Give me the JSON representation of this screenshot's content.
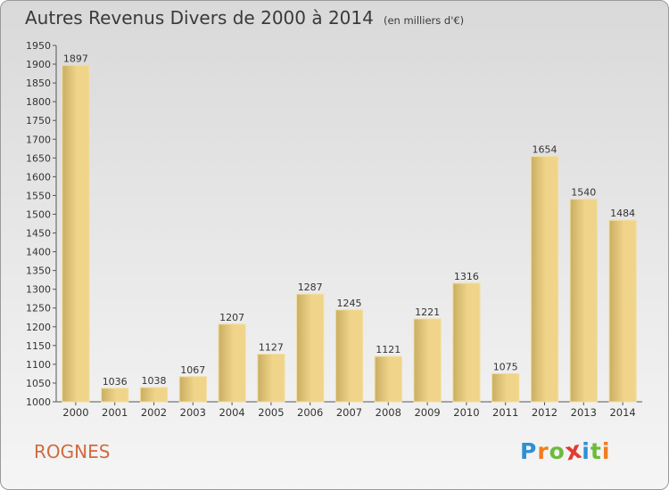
{
  "title": "Autres Revenus Divers de 2000 à 2014",
  "subtitle": "(en milliers d'€)",
  "commune": "ROGNES",
  "brand": {
    "letters": [
      "P",
      "r",
      "o",
      "x",
      "i",
      "t",
      "i"
    ],
    "colors": [
      "#2f8fd6",
      "#ef7d22",
      "#6cbb3c",
      "#e03c31",
      "#2f8fd6",
      "#6cbb3c",
      "#ef7d22"
    ]
  },
  "colors": {
    "bar": "#f0d48a",
    "bar_dark": "#c9ae62"
  },
  "chart_data": {
    "type": "bar",
    "categories": [
      "2000",
      "2001",
      "2002",
      "2003",
      "2004",
      "2005",
      "2006",
      "2007",
      "2008",
      "2009",
      "2010",
      "2011",
      "2012",
      "2013",
      "2014"
    ],
    "values": [
      1897,
      1036,
      1038,
      1067,
      1207,
      1127,
      1287,
      1245,
      1121,
      1221,
      1316,
      1075,
      1654,
      1540,
      1484
    ],
    "data_labels": [
      "1897",
      "1036",
      "1038",
      "1067",
      "1207",
      "1127",
      "1287",
      "1245",
      "1121",
      "1221",
      "1316",
      "1075",
      "1654",
      "1540",
      "1484"
    ],
    "yticks": [
      "1000",
      "1050",
      "1100",
      "1150",
      "1200",
      "1250",
      "1300",
      "1350",
      "1400",
      "1450",
      "1500",
      "1550",
      "1600",
      "1650",
      "1700",
      "1750",
      "1800",
      "1850",
      "1900",
      "1950"
    ],
    "ylim": [
      1000,
      1950
    ],
    "grid": false,
    "legend": "none"
  }
}
